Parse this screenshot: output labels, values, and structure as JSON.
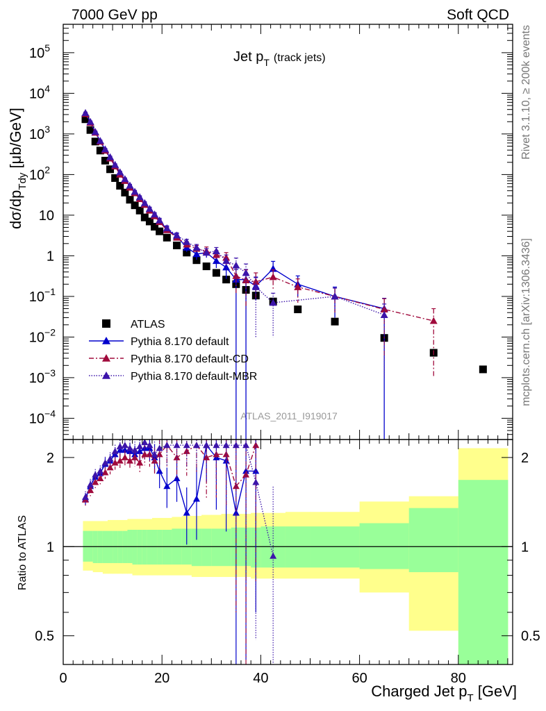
{
  "header": {
    "left": "7000 GeV pp",
    "right": "Soft QCD"
  },
  "side": {
    "rivet": "Rivet 3.1.10, ≥ 200k events",
    "mcplots": "mcplots.cern.ch [arXiv:1306.3436]"
  },
  "chart_data": {
    "type": "scatter",
    "title_main": "Jet p",
    "title_sub": "T",
    "title_note": "(track jets)",
    "watermark": "ATLAS_2011_I919017",
    "ylabel_prefix": "dσ/dp",
    "ylabel_sub": "Tdy",
    "ylabel_suffix": " [μb/GeV]",
    "xlabel_main": "Charged Jet p",
    "xlabel_sub": "T",
    "xlabel_suffix": " [GeV]",
    "ratio_ylabel": "Ratio to ATLAS",
    "xlim": [
      0,
      91
    ],
    "ylim": [
      3e-05,
      500000
    ],
    "yscale": "log",
    "ratio_ylim": [
      0.4,
      2.3
    ],
    "ratio_yscale": "log",
    "x_ticks": [
      "0",
      "20",
      "40",
      "60",
      "80"
    ],
    "y_tick_labels": [
      {
        "v": 0.0001,
        "m": "10",
        "e": "−4"
      },
      {
        "v": 0.001,
        "m": "10",
        "e": "−3"
      },
      {
        "v": 0.01,
        "m": "10",
        "e": "−2"
      },
      {
        "v": 0.1,
        "m": "10",
        "e": "−1"
      },
      {
        "v": 1,
        "m": "1",
        "e": ""
      },
      {
        "v": 10,
        "m": "10",
        "e": ""
      },
      {
        "v": 100,
        "m": "10",
        "e": "2"
      },
      {
        "v": 1000,
        "m": "10",
        "e": "3"
      },
      {
        "v": 10000,
        "m": "10",
        "e": "4"
      },
      {
        "v": 100000,
        "m": "10",
        "e": "5"
      }
    ],
    "ratio_ticks": [
      "0.5",
      "1",
      "2"
    ],
    "legend_placement": "lower-left",
    "grid": false,
    "bins": [
      [
        4,
        5
      ],
      [
        5,
        6
      ],
      [
        6,
        7
      ],
      [
        7,
        8
      ],
      [
        8,
        9
      ],
      [
        9,
        10
      ],
      [
        10,
        11
      ],
      [
        11,
        12
      ],
      [
        12,
        13
      ],
      [
        13,
        14
      ],
      [
        14,
        15
      ],
      [
        15,
        16
      ],
      [
        16,
        17
      ],
      [
        17,
        18
      ],
      [
        18,
        19
      ],
      [
        19,
        20
      ],
      [
        20,
        22
      ],
      [
        22,
        24
      ],
      [
        24,
        26
      ],
      [
        26,
        28
      ],
      [
        28,
        30
      ],
      [
        30,
        32
      ],
      [
        32,
        34
      ],
      [
        34,
        36
      ],
      [
        36,
        38
      ],
      [
        38,
        40
      ],
      [
        40,
        45
      ],
      [
        45,
        50
      ],
      [
        50,
        60
      ],
      [
        60,
        70
      ],
      [
        70,
        80
      ],
      [
        80,
        90
      ]
    ],
    "band_inner": [
      [
        0.89,
        1.13
      ],
      [
        0.89,
        1.13
      ],
      [
        0.88,
        1.13
      ],
      [
        0.88,
        1.13
      ],
      [
        0.88,
        1.13
      ],
      [
        0.88,
        1.13
      ],
      [
        0.88,
        1.13
      ],
      [
        0.88,
        1.13
      ],
      [
        0.88,
        1.13
      ],
      [
        0.88,
        1.14
      ],
      [
        0.87,
        1.14
      ],
      [
        0.87,
        1.14
      ],
      [
        0.87,
        1.14
      ],
      [
        0.87,
        1.14
      ],
      [
        0.87,
        1.14
      ],
      [
        0.87,
        1.14
      ],
      [
        0.87,
        1.14
      ],
      [
        0.87,
        1.15
      ],
      [
        0.87,
        1.15
      ],
      [
        0.86,
        1.15
      ],
      [
        0.86,
        1.15
      ],
      [
        0.86,
        1.15
      ],
      [
        0.86,
        1.15
      ],
      [
        0.86,
        1.16
      ],
      [
        0.86,
        1.16
      ],
      [
        0.85,
        1.16
      ],
      [
        0.85,
        1.17
      ],
      [
        0.85,
        1.17
      ],
      [
        0.85,
        1.17
      ],
      [
        0.84,
        1.2
      ],
      [
        0.82,
        1.35
      ],
      [
        0.34,
        1.68
      ]
    ],
    "band_outer": [
      [
        0.83,
        1.22
      ],
      [
        0.83,
        1.22
      ],
      [
        0.82,
        1.22
      ],
      [
        0.82,
        1.22
      ],
      [
        0.81,
        1.22
      ],
      [
        0.81,
        1.23
      ],
      [
        0.81,
        1.23
      ],
      [
        0.81,
        1.23
      ],
      [
        0.81,
        1.23
      ],
      [
        0.81,
        1.24
      ],
      [
        0.8,
        1.24
      ],
      [
        0.8,
        1.24
      ],
      [
        0.8,
        1.24
      ],
      [
        0.8,
        1.24
      ],
      [
        0.8,
        1.25
      ],
      [
        0.8,
        1.25
      ],
      [
        0.8,
        1.25
      ],
      [
        0.8,
        1.26
      ],
      [
        0.8,
        1.27
      ],
      [
        0.79,
        1.27
      ],
      [
        0.79,
        1.28
      ],
      [
        0.79,
        1.28
      ],
      [
        0.79,
        1.29
      ],
      [
        0.79,
        1.29
      ],
      [
        0.79,
        1.29
      ],
      [
        0.78,
        1.3
      ],
      [
        0.78,
        1.3
      ],
      [
        0.78,
        1.31
      ],
      [
        0.78,
        1.31
      ],
      [
        0.7,
        1.42
      ],
      [
        0.52,
        1.48
      ],
      [
        0.34,
        2.15
      ]
    ],
    "series": [
      {
        "name": "ATLAS",
        "color": "#000000",
        "marker": "square",
        "line": "none",
        "x": [
          4.5,
          5.5,
          6.5,
          7.5,
          8.5,
          9.5,
          10.5,
          11.5,
          12.5,
          13.5,
          14.5,
          15.5,
          16.5,
          17.5,
          18.5,
          19.5,
          21,
          23,
          25,
          27,
          29,
          31,
          33,
          35,
          37,
          39,
          42.5,
          47.5,
          55,
          65,
          75,
          85
        ],
        "y": [
          2300,
          1250,
          650,
          390,
          220,
          135,
          82,
          53,
          36,
          24,
          17.5,
          13,
          8.8,
          7,
          5.2,
          4,
          2.8,
          1.8,
          1.2,
          0.78,
          0.55,
          0.38,
          0.26,
          0.2,
          0.145,
          0.105,
          0.075,
          0.048,
          0.024,
          0.0095,
          0.0041,
          0.0016
        ]
      },
      {
        "name": "Pythia 8.170 default",
        "color": "#0000cc",
        "marker": "triangle",
        "line": "solid",
        "x": [
          4.5,
          5.5,
          6.5,
          7.5,
          8.5,
          9.5,
          10.5,
          11.5,
          12.5,
          13.5,
          14.5,
          15.5,
          16.5,
          17.5,
          18.5,
          19.5,
          21,
          23,
          25,
          27,
          29,
          31,
          33,
          35,
          37,
          39,
          42.5,
          47.5,
          55,
          65
        ],
        "y": [
          3200,
          1950,
          1100,
          660,
          410,
          260,
          170,
          110,
          75,
          52,
          37,
          27,
          19,
          14,
          10,
          7.2,
          4.5,
          3,
          1.6,
          1.1,
          1.2,
          0.75,
          0.52,
          0.26,
          0.26,
          0.18,
          0.48,
          0.2,
          0.1,
          0.05
        ],
        "err_lo": [
          150,
          90,
          50,
          30,
          20,
          14,
          9,
          6,
          4.5,
          3.5,
          2.6,
          2,
          1.6,
          1.3,
          1.1,
          0.9,
          0.7,
          0.5,
          0.35,
          0.3,
          0.3,
          0.25,
          0.25,
          0.26,
          0.26,
          0.1,
          0.2,
          0.1,
          0.07,
          0.05
        ],
        "err_hi": [
          150,
          90,
          50,
          30,
          20,
          14,
          9,
          6,
          4.5,
          3.5,
          2.6,
          2,
          1.6,
          1.3,
          1.1,
          0.9,
          0.7,
          0.5,
          0.35,
          0.3,
          0.3,
          0.25,
          0.22,
          0.2,
          0.2,
          0.12,
          0.25,
          0.12,
          0.07,
          0.04
        ],
        "ratio": [
          1.45,
          1.6,
          1.72,
          1.77,
          1.9,
          1.95,
          2.05,
          2.12,
          2.12,
          2.1,
          2.05,
          2.1,
          2.15,
          2.15,
          2.0,
          1.8,
          1.6,
          1.7,
          1.3,
          1.45,
          2.2,
          2.0,
          1.95,
          1.3,
          1.8,
          1.8,
          null,
          null,
          null,
          null
        ]
      },
      {
        "name": "Pythia 8.170 default-CD",
        "color": "#a00a3c",
        "marker": "triangle",
        "line": "dashdot",
        "x": [
          4.5,
          5.5,
          6.5,
          7.5,
          8.5,
          9.5,
          10.5,
          11.5,
          12.5,
          13.5,
          14.5,
          15.5,
          16.5,
          17.5,
          18.5,
          19.5,
          21,
          23,
          25,
          27,
          29,
          31,
          33,
          35,
          37,
          39,
          42.5,
          47.5,
          55,
          65,
          75
        ],
        "y": [
          3100,
          1900,
          1080,
          650,
          390,
          250,
          160,
          100,
          70,
          48,
          35,
          25,
          18,
          13,
          9.5,
          6.8,
          4.3,
          2.8,
          1.9,
          1.5,
          1.3,
          1.05,
          0.9,
          0.32,
          0.25,
          0.23,
          0.3,
          0.17,
          0.1,
          0.048,
          0.025
        ],
        "err_lo": [
          140,
          85,
          48,
          29,
          19,
          13,
          8.5,
          5.5,
          4.2,
          3.2,
          2.4,
          1.9,
          1.5,
          1.2,
          1,
          0.85,
          0.65,
          0.45,
          0.33,
          0.3,
          0.35,
          0.3,
          0.3,
          0.2,
          0.2,
          0.15,
          0.15,
          0.1,
          0.06,
          0.045,
          0.024
        ],
        "err_hi": [
          140,
          85,
          48,
          29,
          19,
          13,
          8.5,
          5.5,
          4.2,
          3.2,
          2.4,
          1.9,
          1.5,
          1.2,
          1,
          0.85,
          0.65,
          0.45,
          0.33,
          0.3,
          0.35,
          0.3,
          0.3,
          0.2,
          0.2,
          0.15,
          0.15,
          0.1,
          0.06,
          0.04,
          0.025
        ],
        "ratio": [
          1.44,
          1.55,
          1.65,
          1.7,
          1.78,
          1.85,
          1.92,
          1.95,
          2.0,
          1.95,
          2.0,
          1.92,
          2.05,
          2.05,
          1.95,
          2.05,
          2.2,
          2.0,
          2.1,
          2.2,
          2.0,
          2.05,
          2.05,
          1.6,
          1.75,
          2.2,
          null,
          null,
          null,
          null,
          null
        ]
      },
      {
        "name": "Pythia 8.170 default-MBR",
        "color": "#3c14aa",
        "marker": "triangle",
        "line": "dotted",
        "x": [
          4.5,
          5.5,
          6.5,
          7.5,
          8.5,
          9.5,
          10.5,
          11.5,
          12.5,
          13.5,
          14.5,
          15.5,
          16.5,
          17.5,
          18.5,
          19.5,
          21,
          23,
          25,
          27,
          29,
          31,
          33,
          35,
          37,
          39,
          42.5,
          55,
          65
        ],
        "y": [
          3300,
          2000,
          1130,
          680,
          420,
          270,
          175,
          115,
          78,
          54,
          38,
          28,
          20,
          14.5,
          10.5,
          7.5,
          4.8,
          3.2,
          2.2,
          1.6,
          1.2,
          1.3,
          0.75,
          0.58,
          0.38,
          0.17,
          0.07,
          0.1,
          0.035
        ],
        "err_lo": [
          150,
          90,
          50,
          30,
          20,
          14,
          9,
          6,
          4.5,
          3.5,
          2.6,
          2,
          1.6,
          1.3,
          1.1,
          0.9,
          0.7,
          0.5,
          0.35,
          0.3,
          0.3,
          0.3,
          0.3,
          0.3,
          0.3,
          0.16,
          0.06,
          0.06,
          0.034
        ],
        "err_hi": [
          150,
          90,
          50,
          30,
          20,
          14,
          9,
          6,
          4.5,
          3.5,
          2.6,
          2,
          1.6,
          1.3,
          1.1,
          0.9,
          0.7,
          0.5,
          0.35,
          0.3,
          0.3,
          0.3,
          0.3,
          0.3,
          0.25,
          0.12,
          0.05,
          0.06,
          0.03
        ],
        "ratio": [
          1.47,
          1.62,
          1.75,
          1.8,
          1.92,
          1.98,
          2.1,
          2.18,
          2.2,
          2.15,
          2.12,
          2.18,
          2.25,
          2.2,
          2.05,
          2.15,
          2.2,
          2.2,
          2.2,
          2.2,
          2.2,
          2.2,
          2.2,
          2.2,
          2.2,
          1.65,
          0.93,
          null,
          null
        ]
      }
    ]
  }
}
